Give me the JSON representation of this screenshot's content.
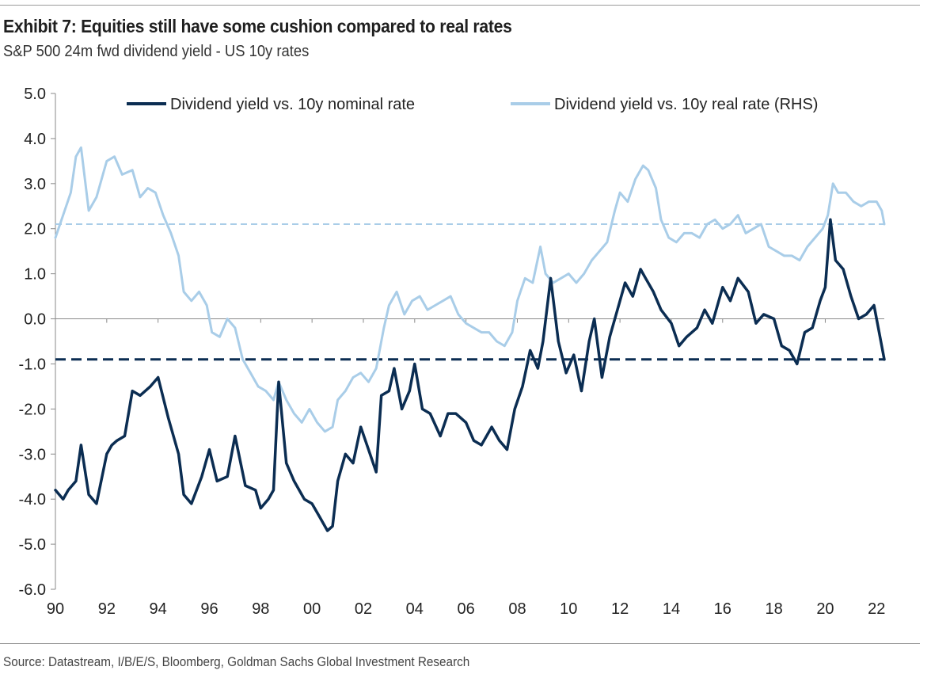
{
  "header": {
    "title": "Exhibit 7: Equities still have some cushion compared to real rates",
    "subtitle": "S&P 500 24m fwd dividend yield - US 10y rates"
  },
  "footer": {
    "source": "Source: Datastream, I/B/E/S, Bloomberg, Goldman Sachs Global Investment Research"
  },
  "colors": {
    "nominal": "#0b2d52",
    "real": "#a9cde8"
  },
  "chart_data": {
    "type": "line",
    "ylim": [
      -6,
      5
    ],
    "yticks": [
      "5.0",
      "4.0",
      "3.0",
      "2.0",
      "1.0",
      "0.0",
      "-1.0",
      "-2.0",
      "-3.0",
      "-4.0",
      "-5.0",
      "-6.0"
    ],
    "xlim": [
      1990,
      2022.3
    ],
    "xticks": [
      "90",
      "92",
      "94",
      "96",
      "98",
      "00",
      "02",
      "04",
      "06",
      "08",
      "10",
      "12",
      "14",
      "16",
      "18",
      "20",
      "22"
    ],
    "grid": false,
    "legend_position": "top",
    "series": [
      {
        "name": "Dividend yield vs. 10y nominal rate",
        "color": "#0b2d52",
        "reference_line": -0.9,
        "x": [
          1990.0,
          1990.3,
          1990.5,
          1990.8,
          1991.0,
          1991.3,
          1991.6,
          1992.0,
          1992.2,
          1992.4,
          1992.7,
          1993.0,
          1993.3,
          1993.7,
          1994.0,
          1994.4,
          1994.8,
          1995.0,
          1995.3,
          1995.7,
          1996.0,
          1996.3,
          1996.7,
          1997.0,
          1997.4,
          1997.8,
          1998.0,
          1998.3,
          1998.5,
          1998.7,
          1999.0,
          1999.3,
          1999.7,
          2000.0,
          2000.3,
          2000.6,
          2000.8,
          2001.0,
          2001.3,
          2001.6,
          2001.9,
          2002.2,
          2002.5,
          2002.7,
          2003.0,
          2003.2,
          2003.5,
          2003.8,
          2004.0,
          2004.3,
          2004.6,
          2005.0,
          2005.3,
          2005.6,
          2006.0,
          2006.3,
          2006.6,
          2007.0,
          2007.3,
          2007.6,
          2007.9,
          2008.2,
          2008.5,
          2008.8,
          2009.0,
          2009.3,
          2009.6,
          2009.9,
          2010.2,
          2010.5,
          2010.8,
          2011.0,
          2011.3,
          2011.6,
          2011.9,
          2012.2,
          2012.5,
          2012.8,
          2013.0,
          2013.3,
          2013.6,
          2014.0,
          2014.3,
          2014.6,
          2015.0,
          2015.3,
          2015.6,
          2016.0,
          2016.3,
          2016.6,
          2017.0,
          2017.3,
          2017.6,
          2018.0,
          2018.3,
          2018.6,
          2018.9,
          2019.2,
          2019.5,
          2019.8,
          2020.0,
          2020.2,
          2020.4,
          2020.7,
          2021.0,
          2021.3,
          2021.6,
          2021.9,
          2022.1,
          2022.3
        ],
        "y": [
          -3.8,
          -4.0,
          -3.8,
          -3.6,
          -2.8,
          -3.9,
          -4.1,
          -3.0,
          -2.8,
          -2.7,
          -2.6,
          -1.6,
          -1.7,
          -1.5,
          -1.3,
          -2.2,
          -3.0,
          -3.9,
          -4.1,
          -3.5,
          -2.9,
          -3.6,
          -3.5,
          -2.6,
          -3.7,
          -3.8,
          -4.2,
          -4.0,
          -3.8,
          -1.4,
          -3.2,
          -3.6,
          -4.0,
          -4.1,
          -4.4,
          -4.7,
          -4.6,
          -3.6,
          -3.0,
          -3.2,
          -2.4,
          -2.9,
          -3.4,
          -1.7,
          -1.6,
          -1.1,
          -2.0,
          -1.6,
          -1.0,
          -2.0,
          -2.1,
          -2.6,
          -2.1,
          -2.1,
          -2.3,
          -2.7,
          -2.8,
          -2.4,
          -2.7,
          -2.9,
          -2.0,
          -1.5,
          -0.7,
          -1.1,
          -0.5,
          0.9,
          -0.5,
          -1.2,
          -0.8,
          -1.6,
          -0.5,
          0.0,
          -1.3,
          -0.4,
          0.2,
          0.8,
          0.5,
          1.1,
          0.9,
          0.6,
          0.2,
          -0.1,
          -0.6,
          -0.4,
          -0.2,
          0.2,
          -0.1,
          0.7,
          0.4,
          0.9,
          0.6,
          -0.1,
          0.1,
          0.0,
          -0.6,
          -0.7,
          -1.0,
          -0.3,
          -0.2,
          0.4,
          0.7,
          2.2,
          1.3,
          1.1,
          0.5,
          0.0,
          0.1,
          0.3,
          -0.3,
          -0.9
        ]
      },
      {
        "name": "Dividend yield vs. 10y real rate (RHS)",
        "color": "#a9cde8",
        "reference_line": 2.1,
        "x": [
          1990.0,
          1990.3,
          1990.6,
          1990.8,
          1991.0,
          1991.3,
          1991.6,
          1992.0,
          1992.3,
          1992.6,
          1993.0,
          1993.3,
          1993.6,
          1993.9,
          1994.2,
          1994.5,
          1994.8,
          1995.0,
          1995.3,
          1995.6,
          1995.9,
          1996.1,
          1996.4,
          1996.7,
          1997.0,
          1997.3,
          1997.6,
          1997.9,
          1998.2,
          1998.5,
          1998.7,
          1999.0,
          1999.3,
          1999.6,
          1999.9,
          2000.2,
          2000.5,
          2000.8,
          2001.0,
          2001.3,
          2001.6,
          2001.9,
          2002.2,
          2002.5,
          2002.8,
          2003.0,
          2003.3,
          2003.6,
          2003.9,
          2004.2,
          2004.5,
          2004.8,
          2005.1,
          2005.4,
          2005.7,
          2006.0,
          2006.3,
          2006.6,
          2006.9,
          2007.2,
          2007.5,
          2007.8,
          2008.0,
          2008.3,
          2008.6,
          2008.9,
          2009.1,
          2009.4,
          2009.7,
          2010.0,
          2010.3,
          2010.6,
          2010.9,
          2011.2,
          2011.5,
          2011.8,
          2012.0,
          2012.3,
          2012.6,
          2012.9,
          2013.1,
          2013.4,
          2013.6,
          2013.9,
          2014.2,
          2014.5,
          2014.8,
          2015.1,
          2015.4,
          2015.7,
          2016.0,
          2016.3,
          2016.6,
          2016.9,
          2017.2,
          2017.5,
          2017.8,
          2018.1,
          2018.4,
          2018.7,
          2019.0,
          2019.3,
          2019.6,
          2019.9,
          2020.1,
          2020.3,
          2020.5,
          2020.8,
          2021.1,
          2021.4,
          2021.7,
          2022.0,
          2022.2,
          2022.3
        ],
        "y": [
          1.8,
          2.3,
          2.8,
          3.6,
          3.8,
          2.4,
          2.7,
          3.5,
          3.6,
          3.2,
          3.3,
          2.7,
          2.9,
          2.8,
          2.3,
          1.9,
          1.4,
          0.6,
          0.4,
          0.6,
          0.3,
          -0.3,
          -0.4,
          0.0,
          -0.2,
          -0.9,
          -1.2,
          -1.5,
          -1.6,
          -1.8,
          -1.4,
          -1.8,
          -2.1,
          -2.3,
          -2.0,
          -2.3,
          -2.5,
          -2.4,
          -1.8,
          -1.6,
          -1.3,
          -1.2,
          -1.4,
          -1.1,
          -0.2,
          0.3,
          0.6,
          0.1,
          0.4,
          0.5,
          0.2,
          0.3,
          0.4,
          0.5,
          0.1,
          -0.1,
          -0.2,
          -0.3,
          -0.3,
          -0.5,
          -0.6,
          -0.3,
          0.4,
          0.9,
          0.8,
          1.6,
          1.0,
          0.8,
          0.9,
          1.0,
          0.8,
          1.0,
          1.3,
          1.5,
          1.7,
          2.4,
          2.8,
          2.6,
          3.1,
          3.4,
          3.3,
          2.9,
          2.2,
          1.8,
          1.7,
          1.9,
          1.9,
          1.8,
          2.1,
          2.2,
          2.0,
          2.1,
          2.3,
          1.9,
          2.0,
          2.1,
          1.6,
          1.5,
          1.4,
          1.4,
          1.3,
          1.6,
          1.8,
          2.0,
          2.3,
          3.0,
          2.8,
          2.8,
          2.6,
          2.5,
          2.6,
          2.6,
          2.4,
          2.1
        ]
      }
    ]
  }
}
